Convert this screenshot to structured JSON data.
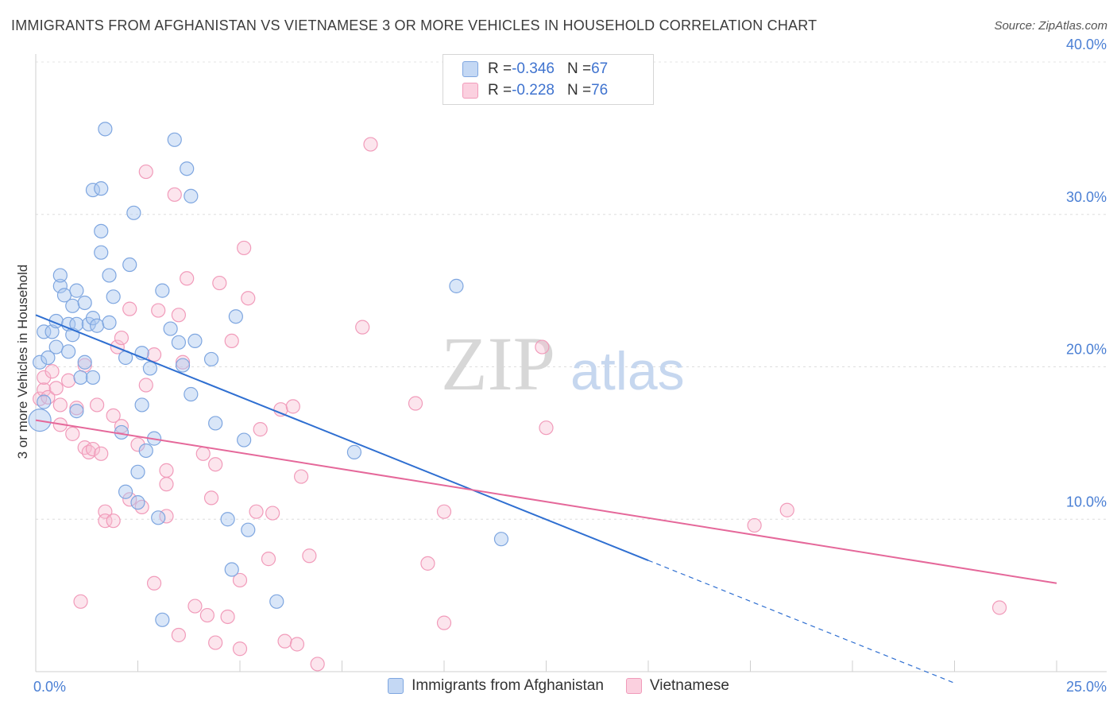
{
  "header": {
    "title": "IMMIGRANTS FROM AFGHANISTAN VS VIETNAMESE 3 OR MORE VEHICLES IN HOUSEHOLD CORRELATION CHART",
    "source": "Source: ZipAtlas.com"
  },
  "legend_top": {
    "row1": {
      "r_label": "R = ",
      "r_value": "-0.346",
      "n_label": "N = ",
      "n_value": "67"
    },
    "row2": {
      "r_label": "R = ",
      "r_value": "-0.228",
      "n_label": "N = ",
      "n_value": "76"
    }
  },
  "watermark": {
    "zip": "ZIP",
    "atlas": "atlas"
  },
  "chart_data": {
    "type": "scatter",
    "title": "IMMIGRANTS FROM AFGHANISTAN VS VIETNAMESE 3 OR MORE VEHICLES IN HOUSEHOLD CORRELATION CHART",
    "xlabel": "",
    "ylabel": "3 or more Vehicles in Household",
    "xlim": [
      0,
      25
    ],
    "ylim": [
      0,
      40
    ],
    "x_tick_labels": [
      "0.0%",
      "25.0%"
    ],
    "y_ticks": [
      10,
      20,
      30,
      40
    ],
    "y_tick_labels": [
      "10.0%",
      "20.0%",
      "30.0%",
      "40.0%"
    ],
    "grid": true,
    "legend_position": "bottom",
    "colors": {
      "afghanistan": "#6f9fe2",
      "vietnamese": "#f08db0",
      "afghanistan_line": "#2f6fd1",
      "vietnamese_line": "#e5689a"
    },
    "series": [
      {
        "name": "Immigrants from Afghanistan",
        "r": -0.346,
        "n": 67,
        "trend": {
          "x0": 0,
          "y0": 23.4,
          "x1": 15,
          "y1": 7.3,
          "dashed_to_x": 22.5
        },
        "points": [
          [
            0.1,
            16.5
          ],
          [
            0.1,
            20.3
          ],
          [
            0.3,
            20.6
          ],
          [
            0.2,
            22.3
          ],
          [
            0.4,
            22.3
          ],
          [
            0.5,
            23.0
          ],
          [
            0.5,
            21.3
          ],
          [
            0.6,
            25.3
          ],
          [
            0.6,
            26.0
          ],
          [
            0.7,
            24.7
          ],
          [
            0.8,
            21.0
          ],
          [
            0.8,
            22.8
          ],
          [
            0.9,
            24.0
          ],
          [
            0.9,
            22.1
          ],
          [
            1.0,
            25.0
          ],
          [
            1.0,
            17.1
          ],
          [
            1.0,
            22.8
          ],
          [
            1.1,
            19.3
          ],
          [
            1.2,
            20.3
          ],
          [
            1.2,
            24.2
          ],
          [
            1.3,
            22.8
          ],
          [
            1.4,
            23.2
          ],
          [
            1.4,
            19.3
          ],
          [
            1.4,
            31.6
          ],
          [
            1.5,
            22.7
          ],
          [
            1.6,
            31.7
          ],
          [
            1.6,
            27.5
          ],
          [
            1.6,
            28.9
          ],
          [
            1.7,
            35.6
          ],
          [
            1.8,
            26.0
          ],
          [
            1.8,
            22.9
          ],
          [
            1.9,
            24.6
          ],
          [
            2.1,
            15.7
          ],
          [
            2.2,
            20.6
          ],
          [
            2.2,
            11.8
          ],
          [
            2.3,
            26.7
          ],
          [
            2.4,
            30.1
          ],
          [
            2.5,
            13.1
          ],
          [
            2.5,
            11.1
          ],
          [
            2.6,
            20.9
          ],
          [
            2.6,
            17.5
          ],
          [
            2.7,
            14.5
          ],
          [
            2.8,
            19.9
          ],
          [
            2.9,
            15.3
          ],
          [
            3.0,
            10.1
          ],
          [
            3.1,
            3.4
          ],
          [
            3.1,
            25.0
          ],
          [
            3.3,
            22.5
          ],
          [
            3.4,
            34.9
          ],
          [
            3.5,
            21.6
          ],
          [
            3.6,
            20.1
          ],
          [
            3.7,
            33.0
          ],
          [
            3.8,
            31.2
          ],
          [
            3.8,
            18.2
          ],
          [
            3.9,
            21.7
          ],
          [
            4.3,
            20.5
          ],
          [
            4.4,
            16.3
          ],
          [
            4.7,
            10.0
          ],
          [
            4.8,
            6.7
          ],
          [
            4.9,
            23.3
          ],
          [
            5.1,
            15.2
          ],
          [
            5.2,
            9.3
          ],
          [
            5.9,
            4.6
          ],
          [
            7.8,
            14.4
          ],
          [
            10.3,
            25.3
          ],
          [
            11.4,
            8.7
          ],
          [
            0.2,
            17.7
          ]
        ]
      },
      {
        "name": "Vietnamese",
        "r": -0.228,
        "n": 76,
        "trend": {
          "x0": 0,
          "y0": 16.5,
          "x1": 25,
          "y1": 5.8
        },
        "points": [
          [
            0.1,
            17.9
          ],
          [
            0.2,
            18.5
          ],
          [
            0.2,
            19.3
          ],
          [
            0.3,
            18.0
          ],
          [
            0.4,
            19.7
          ],
          [
            0.5,
            18.6
          ],
          [
            0.6,
            17.5
          ],
          [
            0.6,
            16.2
          ],
          [
            0.8,
            19.1
          ],
          [
            0.9,
            15.6
          ],
          [
            1.0,
            17.3
          ],
          [
            1.1,
            4.6
          ],
          [
            1.2,
            14.7
          ],
          [
            1.2,
            20.1
          ],
          [
            1.3,
            14.4
          ],
          [
            1.4,
            14.6
          ],
          [
            1.5,
            17.5
          ],
          [
            1.6,
            14.3
          ],
          [
            1.7,
            10.5
          ],
          [
            1.7,
            9.9
          ],
          [
            1.9,
            16.8
          ],
          [
            1.9,
            9.9
          ],
          [
            2.0,
            21.3
          ],
          [
            2.1,
            21.9
          ],
          [
            2.1,
            16.1
          ],
          [
            2.3,
            23.8
          ],
          [
            2.3,
            11.3
          ],
          [
            2.5,
            14.9
          ],
          [
            2.6,
            10.8
          ],
          [
            2.7,
            18.8
          ],
          [
            2.7,
            32.8
          ],
          [
            2.9,
            5.8
          ],
          [
            2.9,
            20.8
          ],
          [
            3.0,
            23.7
          ],
          [
            3.2,
            10.2
          ],
          [
            3.2,
            12.3
          ],
          [
            3.2,
            13.2
          ],
          [
            3.4,
            31.3
          ],
          [
            3.5,
            2.4
          ],
          [
            3.5,
            23.4
          ],
          [
            3.6,
            20.3
          ],
          [
            3.7,
            25.8
          ],
          [
            3.9,
            4.3
          ],
          [
            4.1,
            14.3
          ],
          [
            4.2,
            3.7
          ],
          [
            4.3,
            11.4
          ],
          [
            4.4,
            1.9
          ],
          [
            4.4,
            13.6
          ],
          [
            4.5,
            25.5
          ],
          [
            4.7,
            3.6
          ],
          [
            4.8,
            21.7
          ],
          [
            5.0,
            6.0
          ],
          [
            5.0,
            1.5
          ],
          [
            5.1,
            27.8
          ],
          [
            5.2,
            24.5
          ],
          [
            5.4,
            10.5
          ],
          [
            5.5,
            15.9
          ],
          [
            5.7,
            7.4
          ],
          [
            5.8,
            10.4
          ],
          [
            6.0,
            17.2
          ],
          [
            6.1,
            2.0
          ],
          [
            6.3,
            17.4
          ],
          [
            6.4,
            1.8
          ],
          [
            6.5,
            12.8
          ],
          [
            6.7,
            7.6
          ],
          [
            6.9,
            0.5
          ],
          [
            8.0,
            22.6
          ],
          [
            8.2,
            34.6
          ],
          [
            9.3,
            17.6
          ],
          [
            9.6,
            7.1
          ],
          [
            10.0,
            10.5
          ],
          [
            10.0,
            3.2
          ],
          [
            12.4,
            21.3
          ],
          [
            12.5,
            16.0
          ],
          [
            17.6,
            9.6
          ],
          [
            18.4,
            10.6
          ],
          [
            23.6,
            4.2
          ]
        ]
      }
    ]
  },
  "legend_bottom": {
    "items": [
      {
        "label": "Immigrants from Afghanistan"
      },
      {
        "label": "Vietnamese"
      }
    ]
  }
}
